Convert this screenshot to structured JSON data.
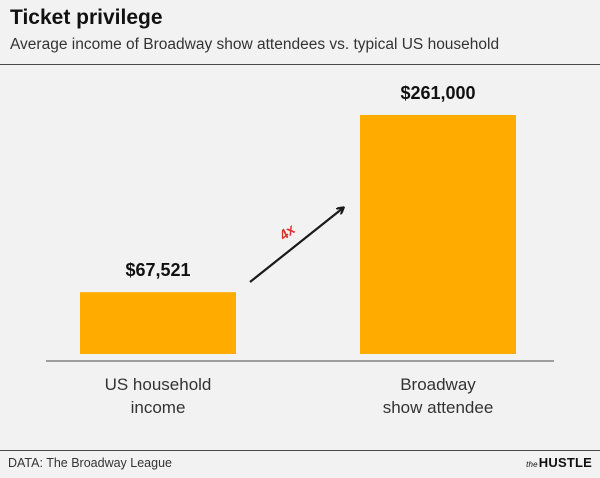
{
  "header": {
    "title": "Ticket privilege",
    "subtitle": "Average income of Broadway show attendees vs. typical US household"
  },
  "footer": {
    "source": "DATA: The Broadway League",
    "brand_prefix": "the",
    "brand_name": "HUSTLE"
  },
  "annotation": {
    "text": "4x",
    "color": "#d9342b"
  },
  "colors": {
    "bar": "#ffab00",
    "arrow": "#1a1a1a",
    "axis": "#4a4a4a"
  },
  "chart_data": {
    "type": "bar",
    "categories": [
      [
        "US household",
        "income"
      ],
      [
        "Broadway",
        "show attendee"
      ]
    ],
    "values": [
      67521,
      261000
    ],
    "value_labels": [
      "$67,521",
      "$261,000"
    ],
    "title": "Ticket privilege",
    "subtitle": "Average income of Broadway show attendees vs. typical US household",
    "xlabel": "",
    "ylabel": "",
    "ylim": [
      0,
      261000
    ],
    "grid": false,
    "legend": "none"
  }
}
